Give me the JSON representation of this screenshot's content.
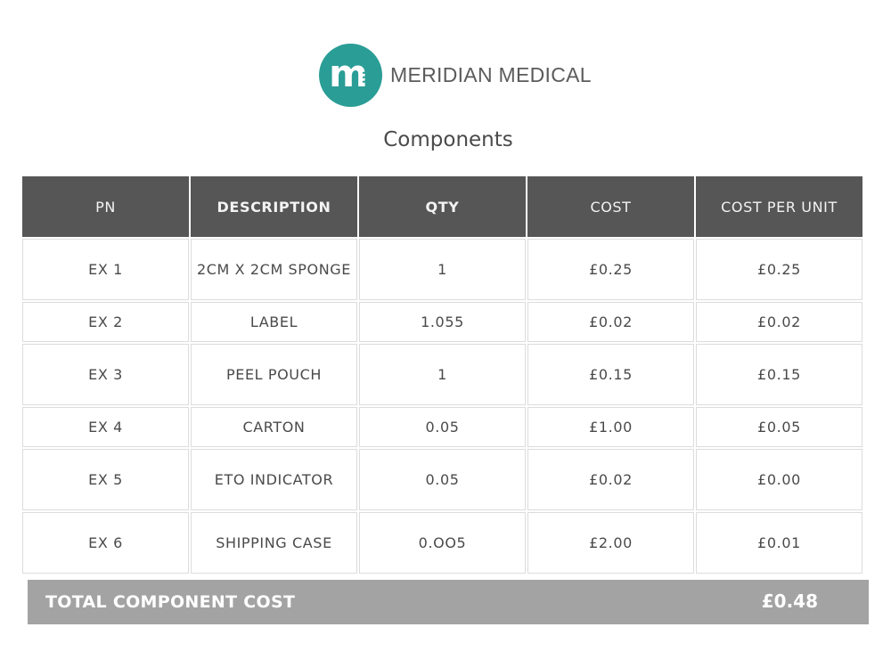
{
  "brand": {
    "name": "MERIDIAN MEDICAL",
    "logo_letter": "m",
    "logo_color": "#2a9d96",
    "logo_icon": "meridian-medical-logo-icon"
  },
  "page": {
    "title": "Components"
  },
  "table": {
    "headers": [
      "PN",
      "DESCRIPTION",
      "QTY",
      "COST",
      "COST PER UNIT"
    ],
    "rows": [
      [
        "EX 1",
        "2CM X 2CM SPONGE",
        "1",
        "£0.25",
        "£0.25"
      ],
      [
        "EX 2",
        "LABEL",
        "1.055",
        "£0.02",
        "£0.02"
      ],
      [
        "EX 3",
        "PEEL POUCH",
        "1",
        "£0.15",
        "£0.15"
      ],
      [
        "EX 4",
        "CARTON",
        "0.05",
        "£1.00",
        "£0.05"
      ],
      [
        "EX 5",
        "ETO INDICATOR",
        "0.05",
        "£0.02",
        "£0.00"
      ],
      [
        "EX 6",
        "SHIPPING CASE",
        "0.OO5",
        "£2.00",
        "£0.01"
      ]
    ]
  },
  "total": {
    "label": "TOTAL COMPONENT COST",
    "value": "£0.48"
  },
  "colors": {
    "header_bg": "#565656",
    "total_bg": "#a3a3a3",
    "brand_teal": "#2a9d96"
  }
}
